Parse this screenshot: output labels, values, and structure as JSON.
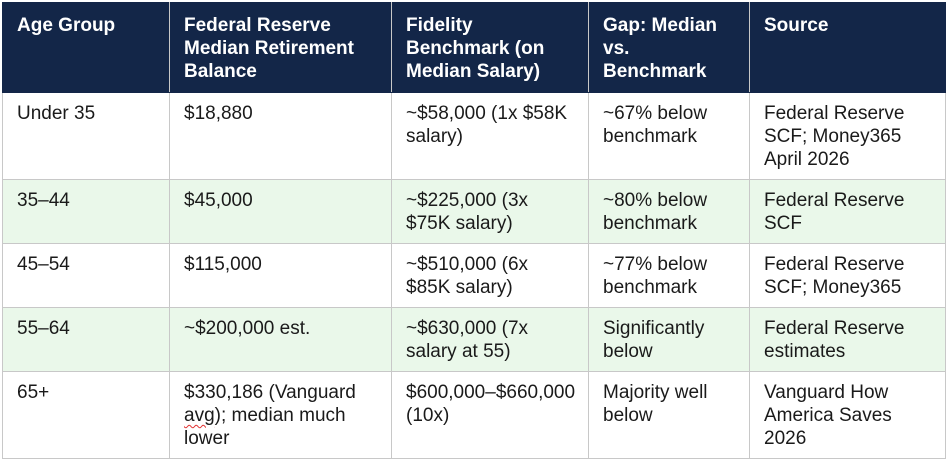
{
  "headers": [
    "Age Group",
    "Federal Reserve Median Retirement Balance",
    "Fidelity Benchmark (on Median Salary)",
    "Gap: Median vs. Benchmark",
    "Source"
  ],
  "rows": [
    {
      "age_group": "Under 35",
      "median_balance": "$18,880",
      "benchmark": "~$58,000 (1x $58K salary)",
      "gap": "~67% below benchmark",
      "source": "Federal Reserve SCF; Money365 April 2026"
    },
    {
      "age_group": "35–44",
      "median_balance": "$45,000",
      "benchmark": "~$225,000 (3x $75K salary)",
      "gap": "~80% below benchmark",
      "source": "Federal Reserve SCF"
    },
    {
      "age_group": "45–54",
      "median_balance": "$115,000",
      "benchmark": "~$510,000 (6x $85K salary)",
      "gap": "~77% below benchmark",
      "source": "Federal Reserve SCF; Money365"
    },
    {
      "age_group": "55–64",
      "median_balance": "~$200,000 est.",
      "benchmark": "~$630,000 (7x salary at 55)",
      "gap": "Significantly below",
      "source": "Federal Reserve estimates"
    },
    {
      "age_group": "65+",
      "median_balance_parts": [
        "$330,186 (Vanguard ",
        "avg",
        "); median much lower"
      ],
      "benchmark": "$600,000–$660,000 (10x)",
      "gap": "Majority well below",
      "source": "Vanguard How America Saves 2026"
    }
  ],
  "colors": {
    "header_bg": "#132648",
    "header_text": "#ffffff",
    "alt_row_bg": "#eaf8ea",
    "border": "#c8c8c8",
    "spellcheck_underline": "#e03030"
  }
}
